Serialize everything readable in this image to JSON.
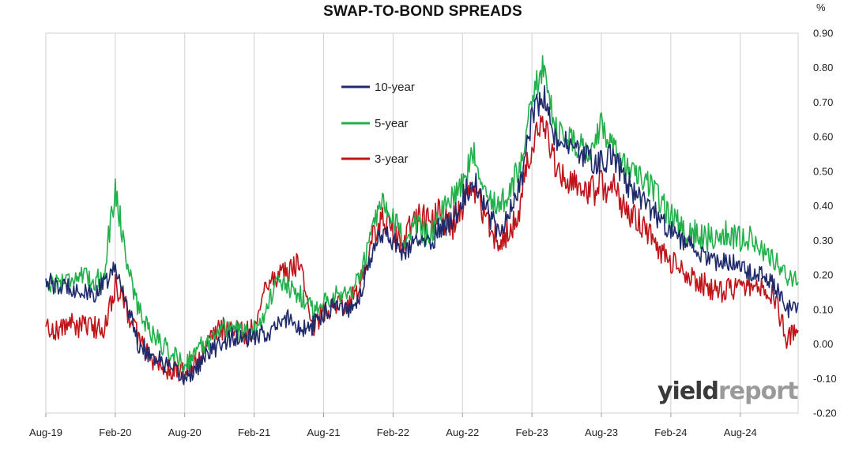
{
  "chart_data": {
    "type": "line",
    "title": "SWAP-TO-BOND SPREADS",
    "unit": "%",
    "ylim": [
      -0.2,
      0.9
    ],
    "yticks": [
      "0.90",
      "0.80",
      "0.70",
      "0.60",
      "0.50",
      "0.40",
      "0.30",
      "0.20",
      "0.10",
      "0.00",
      "-0.10",
      "-0.20"
    ],
    "xtick_labels": [
      "Aug-19",
      "Feb-20",
      "Aug-20",
      "Feb-21",
      "Aug-21",
      "Feb-22",
      "Aug-22",
      "Feb-23",
      "Aug-23",
      "Feb-24",
      "Aug-24"
    ],
    "x_unit": "months since Aug-19",
    "grid": "vertical",
    "legend_position": "upper-left-center",
    "series": [
      {
        "name": "10-year",
        "color": "#1f2a6b",
        "points": [
          [
            0,
            0.19
          ],
          [
            1,
            0.16
          ],
          [
            2,
            0.17
          ],
          [
            3,
            0.15
          ],
          [
            4,
            0.14
          ],
          [
            5,
            0.17
          ],
          [
            6,
            0.22
          ],
          [
            7,
            0.12
          ],
          [
            8,
            0.0
          ],
          [
            9,
            -0.03
          ],
          [
            10,
            -0.05
          ],
          [
            11,
            -0.08
          ],
          [
            12,
            -0.1
          ],
          [
            13,
            -0.07
          ],
          [
            14,
            -0.03
          ],
          [
            15,
            0.0
          ],
          [
            16,
            0.02
          ],
          [
            17,
            0.01
          ],
          [
            18,
            0.02
          ],
          [
            19,
            0.03
          ],
          [
            20,
            0.05
          ],
          [
            21,
            0.08
          ],
          [
            22,
            0.04
          ],
          [
            23,
            0.05
          ],
          [
            24,
            0.09
          ],
          [
            25,
            0.12
          ],
          [
            26,
            0.1
          ],
          [
            27,
            0.13
          ],
          [
            28,
            0.24
          ],
          [
            29,
            0.33
          ],
          [
            30,
            0.3
          ],
          [
            31,
            0.26
          ],
          [
            32,
            0.3
          ],
          [
            33,
            0.29
          ],
          [
            34,
            0.33
          ],
          [
            35,
            0.36
          ],
          [
            36,
            0.42
          ],
          [
            37,
            0.48
          ],
          [
            38,
            0.4
          ],
          [
            39,
            0.33
          ],
          [
            40,
            0.37
          ],
          [
            41,
            0.46
          ],
          [
            42,
            0.66
          ],
          [
            43,
            0.72
          ],
          [
            44,
            0.59
          ],
          [
            45,
            0.58
          ],
          [
            46,
            0.55
          ],
          [
            47,
            0.54
          ],
          [
            48,
            0.52
          ],
          [
            49,
            0.55
          ],
          [
            50,
            0.48
          ],
          [
            51,
            0.43
          ],
          [
            52,
            0.4
          ],
          [
            53,
            0.36
          ],
          [
            54,
            0.33
          ],
          [
            55,
            0.3
          ],
          [
            56,
            0.28
          ],
          [
            57,
            0.25
          ],
          [
            58,
            0.23
          ],
          [
            59,
            0.24
          ],
          [
            60,
            0.22
          ],
          [
            61,
            0.21
          ],
          [
            62,
            0.2
          ],
          [
            63,
            0.17
          ],
          [
            64,
            0.1
          ],
          [
            65,
            0.12
          ]
        ]
      },
      {
        "name": "5-year",
        "color": "#22b04b",
        "points": [
          [
            0,
            0.17
          ],
          [
            1,
            0.18
          ],
          [
            2,
            0.19
          ],
          [
            3,
            0.2
          ],
          [
            4,
            0.18
          ],
          [
            5,
            0.2
          ],
          [
            6,
            0.45
          ],
          [
            7,
            0.24
          ],
          [
            8,
            0.1
          ],
          [
            9,
            0.04
          ],
          [
            10,
            0.0
          ],
          [
            11,
            -0.03
          ],
          [
            12,
            -0.06
          ],
          [
            13,
            -0.02
          ],
          [
            14,
            0.01
          ],
          [
            15,
            0.04
          ],
          [
            16,
            0.05
          ],
          [
            17,
            0.03
          ],
          [
            18,
            0.04
          ],
          [
            19,
            0.1
          ],
          [
            20,
            0.18
          ],
          [
            21,
            0.16
          ],
          [
            22,
            0.14
          ],
          [
            23,
            0.1
          ],
          [
            24,
            0.12
          ],
          [
            25,
            0.15
          ],
          [
            26,
            0.14
          ],
          [
            27,
            0.18
          ],
          [
            28,
            0.3
          ],
          [
            29,
            0.4
          ],
          [
            30,
            0.35
          ],
          [
            31,
            0.31
          ],
          [
            32,
            0.34
          ],
          [
            33,
            0.32
          ],
          [
            34,
            0.36
          ],
          [
            35,
            0.42
          ],
          [
            36,
            0.47
          ],
          [
            37,
            0.55
          ],
          [
            38,
            0.46
          ],
          [
            39,
            0.39
          ],
          [
            40,
            0.43
          ],
          [
            41,
            0.52
          ],
          [
            42,
            0.72
          ],
          [
            43,
            0.8
          ],
          [
            44,
            0.62
          ],
          [
            45,
            0.6
          ],
          [
            46,
            0.57
          ],
          [
            47,
            0.57
          ],
          [
            48,
            0.63
          ],
          [
            49,
            0.58
          ],
          [
            50,
            0.52
          ],
          [
            51,
            0.48
          ],
          [
            52,
            0.46
          ],
          [
            53,
            0.42
          ],
          [
            54,
            0.37
          ],
          [
            55,
            0.34
          ],
          [
            56,
            0.32
          ],
          [
            57,
            0.31
          ],
          [
            58,
            0.3
          ],
          [
            59,
            0.32
          ],
          [
            60,
            0.31
          ],
          [
            61,
            0.3
          ],
          [
            62,
            0.27
          ],
          [
            63,
            0.24
          ],
          [
            64,
            0.2
          ],
          [
            65,
            0.18
          ]
        ]
      },
      {
        "name": "3-year",
        "color": "#c0141b",
        "points": [
          [
            0,
            0.05
          ],
          [
            1,
            0.04
          ],
          [
            2,
            0.06
          ],
          [
            3,
            0.05
          ],
          [
            4,
            0.05
          ],
          [
            5,
            0.04
          ],
          [
            6,
            0.17
          ],
          [
            7,
            0.1
          ],
          [
            8,
            0.02
          ],
          [
            9,
            -0.04
          ],
          [
            10,
            -0.07
          ],
          [
            11,
            -0.08
          ],
          [
            12,
            -0.08
          ],
          [
            13,
            -0.05
          ],
          [
            14,
            0.0
          ],
          [
            15,
            0.04
          ],
          [
            16,
            0.05
          ],
          [
            17,
            0.03
          ],
          [
            18,
            0.04
          ],
          [
            19,
            0.18
          ],
          [
            20,
            0.2
          ],
          [
            21,
            0.21
          ],
          [
            22,
            0.24
          ],
          [
            23,
            0.05
          ],
          [
            24,
            0.09
          ],
          [
            25,
            0.12
          ],
          [
            26,
            0.12
          ],
          [
            27,
            0.15
          ],
          [
            28,
            0.28
          ],
          [
            29,
            0.36
          ],
          [
            30,
            0.32
          ],
          [
            31,
            0.3
          ],
          [
            32,
            0.37
          ],
          [
            33,
            0.35
          ],
          [
            34,
            0.38
          ],
          [
            35,
            0.34
          ],
          [
            36,
            0.4
          ],
          [
            37,
            0.45
          ],
          [
            38,
            0.37
          ],
          [
            39,
            0.3
          ],
          [
            40,
            0.32
          ],
          [
            41,
            0.41
          ],
          [
            42,
            0.58
          ],
          [
            43,
            0.63
          ],
          [
            44,
            0.52
          ],
          [
            45,
            0.49
          ],
          [
            46,
            0.45
          ],
          [
            47,
            0.44
          ],
          [
            48,
            0.46
          ],
          [
            49,
            0.45
          ],
          [
            50,
            0.4
          ],
          [
            51,
            0.36
          ],
          [
            52,
            0.32
          ],
          [
            53,
            0.27
          ],
          [
            54,
            0.24
          ],
          [
            55,
            0.21
          ],
          [
            56,
            0.19
          ],
          [
            57,
            0.17
          ],
          [
            58,
            0.15
          ],
          [
            59,
            0.16
          ],
          [
            60,
            0.16
          ],
          [
            61,
            0.17
          ],
          [
            62,
            0.16
          ],
          [
            63,
            0.13
          ],
          [
            64,
            0.02
          ],
          [
            65,
            0.04
          ]
        ]
      }
    ]
  },
  "watermark": {
    "part_a": "yield",
    "part_b": "report"
  }
}
